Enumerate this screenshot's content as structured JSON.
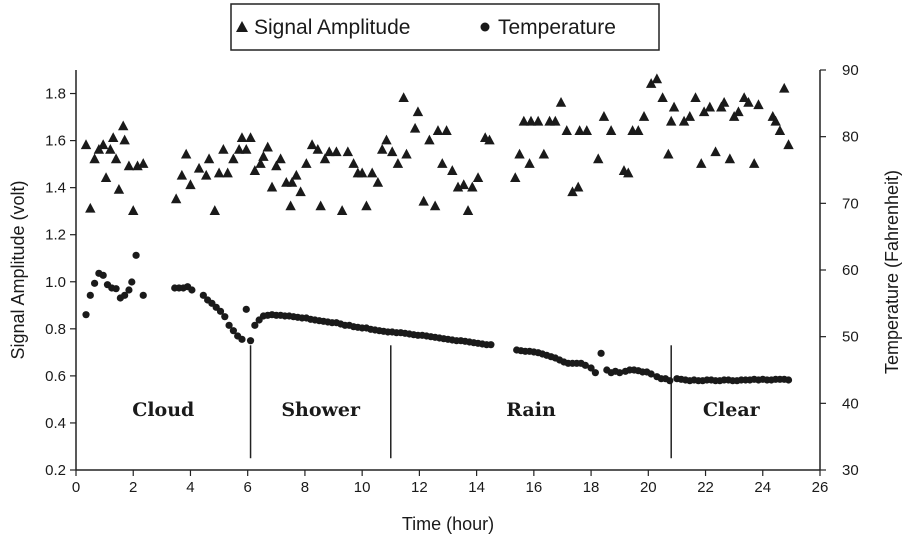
{
  "chart_data": {
    "type": "scatter",
    "legend_position": "top",
    "grid": false,
    "xlabel": "Time (hour)",
    "ylabel": "Signal Amplitude (volt)",
    "y2label": "Temperature (Fahrenheit)",
    "xlim": [
      0,
      26
    ],
    "ylim": [
      0.2,
      1.9
    ],
    "y2lim": [
      30,
      90
    ],
    "x_ticks": [
      "0",
      "2",
      "4",
      "6",
      "8",
      "10",
      "12",
      "14",
      "16",
      "18",
      "20",
      "22",
      "24",
      "26"
    ],
    "y_ticks": [
      "0.2",
      "0.4",
      "0.6",
      "0.8",
      "1.0",
      "1.2",
      "1.4",
      "1.6",
      "1.8"
    ],
    "y2_ticks": [
      "30",
      "40",
      "50",
      "60",
      "70",
      "80",
      "90"
    ],
    "regions": [
      {
        "label": "Cloud",
        "start": 0,
        "end": 6.1
      },
      {
        "label": "Shower",
        "start": 6.1,
        "end": 11.0
      },
      {
        "label": "Rain",
        "start": 11.0,
        "end": 20.8
      },
      {
        "label": "Clear",
        "start": 20.8,
        "end": 25
      }
    ],
    "region_boundaries": [
      6.1,
      11.0,
      20.8
    ],
    "series": [
      {
        "name": "Signal Amplitude",
        "axis": "left",
        "marker": "triangle",
        "points": [
          [
            0.35,
            1.58
          ],
          [
            0.5,
            1.31
          ],
          [
            0.65,
            1.52
          ],
          [
            0.8,
            1.56
          ],
          [
            0.95,
            1.58
          ],
          [
            1.05,
            1.44
          ],
          [
            1.2,
            1.56
          ],
          [
            1.3,
            1.61
          ],
          [
            1.4,
            1.52
          ],
          [
            1.5,
            1.39
          ],
          [
            1.65,
            1.66
          ],
          [
            1.7,
            1.6
          ],
          [
            1.85,
            1.49
          ],
          [
            2.0,
            1.3
          ],
          [
            2.15,
            1.49
          ],
          [
            2.35,
            1.5
          ],
          [
            3.5,
            1.35
          ],
          [
            3.7,
            1.45
          ],
          [
            3.85,
            1.54
          ],
          [
            4.0,
            1.41
          ],
          [
            4.3,
            1.48
          ],
          [
            4.55,
            1.45
          ],
          [
            4.65,
            1.52
          ],
          [
            4.85,
            1.3
          ],
          [
            5.0,
            1.46
          ],
          [
            5.15,
            1.56
          ],
          [
            5.3,
            1.46
          ],
          [
            5.5,
            1.52
          ],
          [
            5.7,
            1.56
          ],
          [
            5.8,
            1.61
          ],
          [
            5.95,
            1.56
          ],
          [
            6.1,
            1.61
          ],
          [
            6.25,
            1.47
          ],
          [
            6.45,
            1.5
          ],
          [
            6.55,
            1.53
          ],
          [
            6.7,
            1.57
          ],
          [
            6.85,
            1.4
          ],
          [
            7.0,
            1.49
          ],
          [
            7.15,
            1.52
          ],
          [
            7.35,
            1.42
          ],
          [
            7.5,
            1.32
          ],
          [
            7.55,
            1.42
          ],
          [
            7.7,
            1.45
          ],
          [
            7.85,
            1.38
          ],
          [
            8.05,
            1.5
          ],
          [
            8.25,
            1.58
          ],
          [
            8.45,
            1.56
          ],
          [
            8.55,
            1.32
          ],
          [
            8.7,
            1.52
          ],
          [
            8.85,
            1.55
          ],
          [
            9.1,
            1.55
          ],
          [
            9.3,
            1.3
          ],
          [
            9.5,
            1.55
          ],
          [
            9.7,
            1.5
          ],
          [
            9.85,
            1.46
          ],
          [
            10.0,
            1.46
          ],
          [
            10.15,
            1.32
          ],
          [
            10.35,
            1.46
          ],
          [
            10.55,
            1.42
          ],
          [
            10.7,
            1.56
          ],
          [
            10.85,
            1.6
          ],
          [
            11.05,
            1.55
          ],
          [
            11.25,
            1.5
          ],
          [
            11.45,
            1.78
          ],
          [
            11.55,
            1.54
          ],
          [
            11.85,
            1.65
          ],
          [
            11.95,
            1.72
          ],
          [
            12.15,
            1.34
          ],
          [
            12.35,
            1.6
          ],
          [
            12.55,
            1.32
          ],
          [
            12.65,
            1.64
          ],
          [
            12.8,
            1.5
          ],
          [
            12.95,
            1.64
          ],
          [
            13.15,
            1.47
          ],
          [
            13.35,
            1.4
          ],
          [
            13.55,
            1.41
          ],
          [
            13.7,
            1.3
          ],
          [
            13.85,
            1.4
          ],
          [
            14.05,
            1.44
          ],
          [
            14.3,
            1.61
          ],
          [
            14.45,
            1.6
          ],
          [
            15.35,
            1.44
          ],
          [
            15.5,
            1.54
          ],
          [
            15.65,
            1.68
          ],
          [
            15.85,
            1.5
          ],
          [
            15.9,
            1.68
          ],
          [
            16.15,
            1.68
          ],
          [
            16.35,
            1.54
          ],
          [
            16.55,
            1.68
          ],
          [
            16.75,
            1.68
          ],
          [
            16.95,
            1.76
          ],
          [
            17.15,
            1.64
          ],
          [
            17.35,
            1.38
          ],
          [
            17.55,
            1.4
          ],
          [
            17.6,
            1.64
          ],
          [
            17.85,
            1.64
          ],
          [
            18.25,
            1.52
          ],
          [
            18.45,
            1.7
          ],
          [
            18.7,
            1.64
          ],
          [
            19.15,
            1.47
          ],
          [
            19.3,
            1.46
          ],
          [
            19.45,
            1.64
          ],
          [
            19.65,
            1.64
          ],
          [
            19.85,
            1.7
          ],
          [
            20.1,
            1.84
          ],
          [
            20.3,
            1.86
          ],
          [
            20.5,
            1.78
          ],
          [
            20.7,
            1.54
          ],
          [
            20.8,
            1.68
          ],
          [
            20.9,
            1.74
          ],
          [
            21.25,
            1.68
          ],
          [
            21.45,
            1.7
          ],
          [
            21.65,
            1.78
          ],
          [
            21.85,
            1.5
          ],
          [
            21.95,
            1.72
          ],
          [
            22.15,
            1.74
          ],
          [
            22.35,
            1.55
          ],
          [
            22.55,
            1.74
          ],
          [
            22.65,
            1.76
          ],
          [
            22.85,
            1.52
          ],
          [
            23.0,
            1.7
          ],
          [
            23.15,
            1.72
          ],
          [
            23.35,
            1.78
          ],
          [
            23.5,
            1.76
          ],
          [
            23.7,
            1.5
          ],
          [
            23.85,
            1.75
          ],
          [
            24.35,
            1.7
          ],
          [
            24.45,
            1.68
          ],
          [
            24.6,
            1.64
          ],
          [
            24.75,
            1.82
          ],
          [
            24.9,
            1.58
          ]
        ]
      },
      {
        "name": "Temperature",
        "axis": "right",
        "marker": "circle",
        "points": [
          [
            0.35,
            53.3
          ],
          [
            0.5,
            56.2
          ],
          [
            0.65,
            58.0
          ],
          [
            0.8,
            59.5
          ],
          [
            0.95,
            59.2
          ],
          [
            1.1,
            57.8
          ],
          [
            1.25,
            57.3
          ],
          [
            1.4,
            57.2
          ],
          [
            1.55,
            55.8
          ],
          [
            1.7,
            56.2
          ],
          [
            1.85,
            57.0
          ],
          [
            1.95,
            58.2
          ],
          [
            2.1,
            62.2
          ],
          [
            2.35,
            56.2
          ],
          [
            3.45,
            57.3
          ],
          [
            3.6,
            57.3
          ],
          [
            3.75,
            57.3
          ],
          [
            3.9,
            57.5
          ],
          [
            4.05,
            57.0
          ],
          [
            4.45,
            56.2
          ],
          [
            4.6,
            55.5
          ],
          [
            4.75,
            55.0
          ],
          [
            4.9,
            54.4
          ],
          [
            5.05,
            53.8
          ],
          [
            5.2,
            53.0
          ],
          [
            5.35,
            51.7
          ],
          [
            5.5,
            50.9
          ],
          [
            5.65,
            50.1
          ],
          [
            5.8,
            49.6
          ],
          [
            5.95,
            54.1
          ],
          [
            6.1,
            49.4
          ],
          [
            6.25,
            51.7
          ],
          [
            6.4,
            52.5
          ],
          [
            6.55,
            53.1
          ],
          [
            6.7,
            53.2
          ],
          [
            6.85,
            53.3
          ],
          [
            7.0,
            53.2
          ],
          [
            7.15,
            53.2
          ],
          [
            7.3,
            53.1
          ],
          [
            7.45,
            53.1
          ],
          [
            7.6,
            53.0
          ],
          [
            7.75,
            52.9
          ],
          [
            7.9,
            52.8
          ],
          [
            8.05,
            52.8
          ],
          [
            8.2,
            52.6
          ],
          [
            8.35,
            52.5
          ],
          [
            8.5,
            52.4
          ],
          [
            8.65,
            52.3
          ],
          [
            8.8,
            52.2
          ],
          [
            8.95,
            52.1
          ],
          [
            9.1,
            52.1
          ],
          [
            9.25,
            51.9
          ],
          [
            9.4,
            51.7
          ],
          [
            9.55,
            51.7
          ],
          [
            9.7,
            51.5
          ],
          [
            9.85,
            51.4
          ],
          [
            10.0,
            51.3
          ],
          [
            10.15,
            51.3
          ],
          [
            10.3,
            51.1
          ],
          [
            10.45,
            51.0
          ],
          [
            10.6,
            50.9
          ],
          [
            10.75,
            50.8
          ],
          [
            10.9,
            50.7
          ],
          [
            11.05,
            50.7
          ],
          [
            11.2,
            50.6
          ],
          [
            11.35,
            50.6
          ],
          [
            11.5,
            50.5
          ],
          [
            11.65,
            50.4
          ],
          [
            11.8,
            50.3
          ],
          [
            11.95,
            50.2
          ],
          [
            12.1,
            50.2
          ],
          [
            12.25,
            50.1
          ],
          [
            12.4,
            50.0
          ],
          [
            12.55,
            49.9
          ],
          [
            12.7,
            49.8
          ],
          [
            12.85,
            49.7
          ],
          [
            13.0,
            49.6
          ],
          [
            13.15,
            49.5
          ],
          [
            13.3,
            49.4
          ],
          [
            13.45,
            49.4
          ],
          [
            13.6,
            49.3
          ],
          [
            13.75,
            49.2
          ],
          [
            13.9,
            49.1
          ],
          [
            14.05,
            49.0
          ],
          [
            14.2,
            48.9
          ],
          [
            14.35,
            48.8
          ],
          [
            14.5,
            48.8
          ],
          [
            15.4,
            48.0
          ],
          [
            15.55,
            47.9
          ],
          [
            15.7,
            47.8
          ],
          [
            15.85,
            47.8
          ],
          [
            16.0,
            47.7
          ],
          [
            16.15,
            47.6
          ],
          [
            16.3,
            47.4
          ],
          [
            16.45,
            47.2
          ],
          [
            16.6,
            47.0
          ],
          [
            16.75,
            46.8
          ],
          [
            16.9,
            46.5
          ],
          [
            17.05,
            46.2
          ],
          [
            17.2,
            46.0
          ],
          [
            17.35,
            46.0
          ],
          [
            17.5,
            46.0
          ],
          [
            17.65,
            46.0
          ],
          [
            17.8,
            45.7
          ],
          [
            18.0,
            45.3
          ],
          [
            18.15,
            44.6
          ],
          [
            18.35,
            47.5
          ],
          [
            18.55,
            45.0
          ],
          [
            18.7,
            44.6
          ],
          [
            18.85,
            44.8
          ],
          [
            19.0,
            44.6
          ],
          [
            19.2,
            44.8
          ],
          [
            19.35,
            45.0
          ],
          [
            19.5,
            45.0
          ],
          [
            19.65,
            44.9
          ],
          [
            19.8,
            44.7
          ],
          [
            19.95,
            44.7
          ],
          [
            20.1,
            44.4
          ],
          [
            20.3,
            44.0
          ],
          [
            20.45,
            43.7
          ],
          [
            20.6,
            43.7
          ],
          [
            20.75,
            43.4
          ],
          [
            21.0,
            43.7
          ],
          [
            21.15,
            43.6
          ],
          [
            21.3,
            43.5
          ],
          [
            21.45,
            43.4
          ],
          [
            21.6,
            43.5
          ],
          [
            21.75,
            43.4
          ],
          [
            21.9,
            43.4
          ],
          [
            22.05,
            43.5
          ],
          [
            22.2,
            43.5
          ],
          [
            22.35,
            43.4
          ],
          [
            22.5,
            43.4
          ],
          [
            22.65,
            43.5
          ],
          [
            22.8,
            43.5
          ],
          [
            22.95,
            43.4
          ],
          [
            23.1,
            43.4
          ],
          [
            23.25,
            43.5
          ],
          [
            23.4,
            43.5
          ],
          [
            23.55,
            43.5
          ],
          [
            23.7,
            43.6
          ],
          [
            23.85,
            43.5
          ],
          [
            24.0,
            43.6
          ],
          [
            24.15,
            43.5
          ],
          [
            24.3,
            43.5
          ],
          [
            24.45,
            43.6
          ],
          [
            24.6,
            43.6
          ],
          [
            24.75,
            43.6
          ],
          [
            24.9,
            43.5
          ]
        ]
      }
    ]
  }
}
